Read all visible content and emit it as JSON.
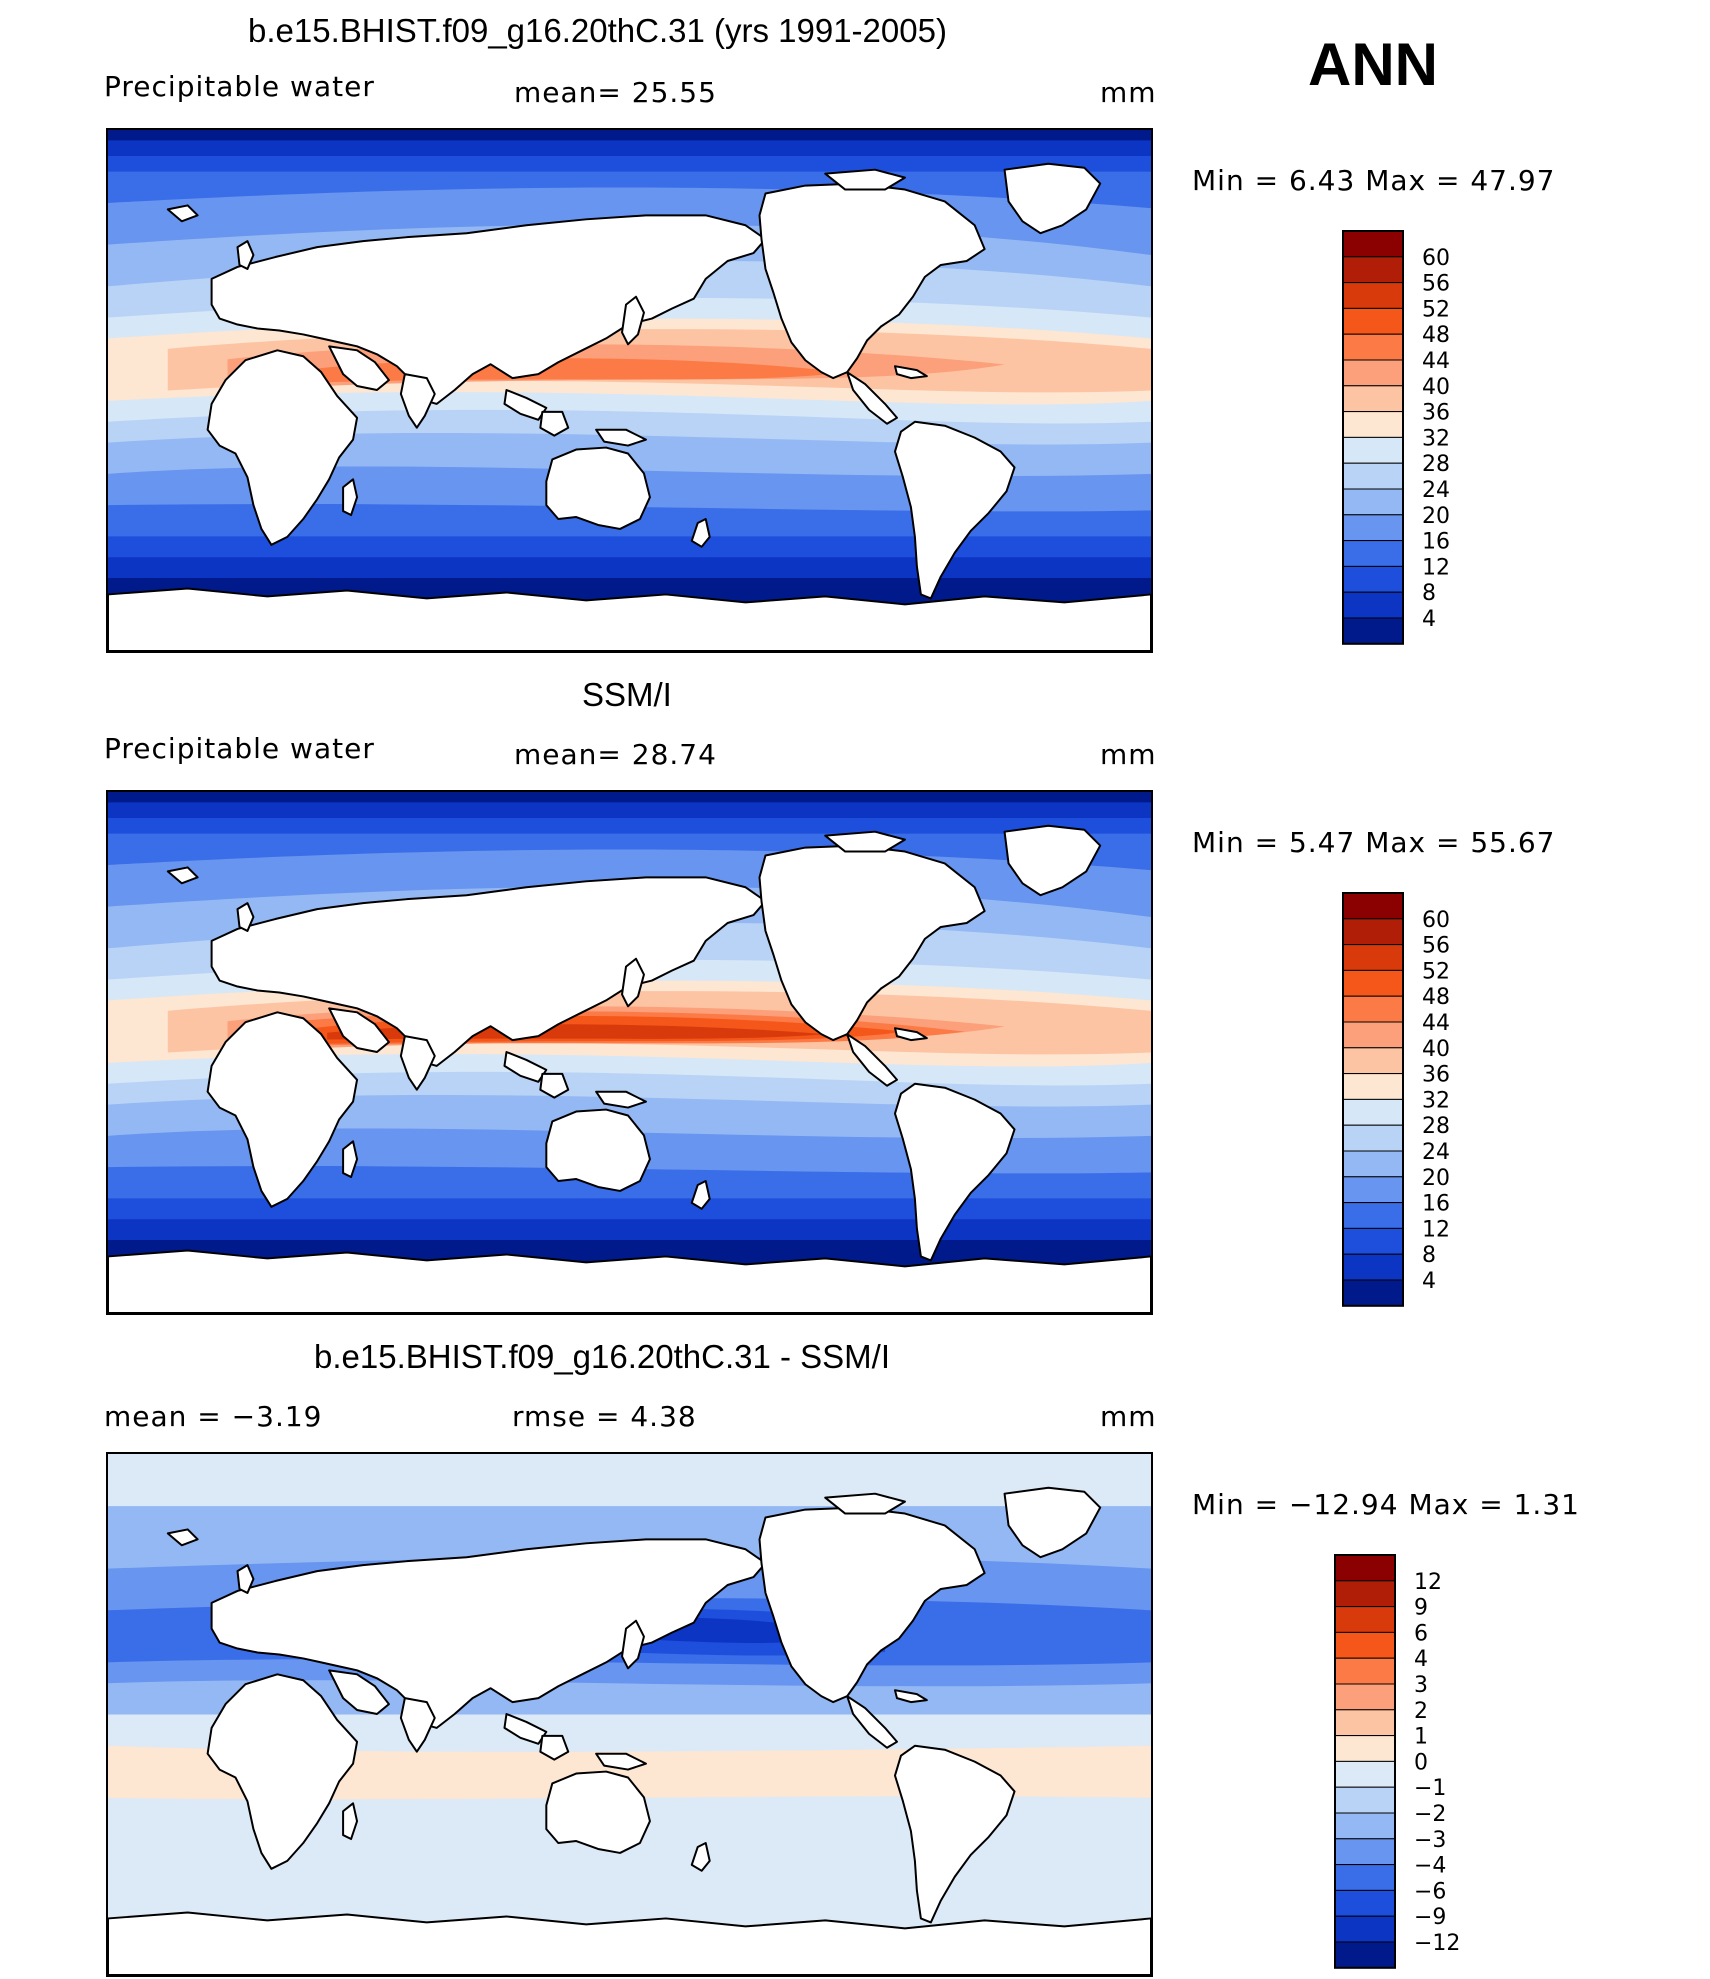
{
  "season": "ANN",
  "panels": [
    {
      "id": "model",
      "title": "b.e15.BHIST.f09_g16.20thC.31 (yrs 1991-2005)",
      "left_label": "Precipitable  water",
      "center_label": "mean=   25.55",
      "units": "mm",
      "minmax": "Min  =     6.43  Max  =    47.97",
      "palette": "abs",
      "levels": [
        "60",
        "56",
        "52",
        "48",
        "44",
        "40",
        "36",
        "32",
        "28",
        "24",
        "20",
        "16",
        "12",
        "8",
        "4"
      ]
    },
    {
      "id": "obs",
      "title": "SSM/I",
      "left_label": "Precipitable  water",
      "center_label": "mean=   28.74",
      "units": "mm",
      "minmax": "Min  =     5.47  Max  =    55.67",
      "palette": "abs",
      "levels": [
        "60",
        "56",
        "52",
        "48",
        "44",
        "40",
        "36",
        "32",
        "28",
        "24",
        "20",
        "16",
        "12",
        "8",
        "4"
      ]
    },
    {
      "id": "diff",
      "title": "b.e15.BHIST.f09_g16.20thC.31 - SSM/I",
      "left_label": "mean  =    −3.19",
      "center_label": "rmse  =     4.38",
      "units": "mm",
      "minmax": "Min  = −12.94  Max  =      1.31",
      "palette": "diff",
      "levels": [
        "12",
        "9",
        "6",
        "4",
        "3",
        "2",
        "1",
        "0",
        "−1",
        "−2",
        "−3",
        "−4",
        "−6",
        "−9",
        "−12"
      ]
    }
  ],
  "colors": {
    "abs": [
      "#8b0000",
      "#b01e08",
      "#d93a0b",
      "#f5561a",
      "#fc7a45",
      "#fca07b",
      "#fdc4a3",
      "#fde6d2",
      "#d6e7f7",
      "#b8d3f5",
      "#93b8f3",
      "#6795ef",
      "#3a6de8",
      "#1e4fdc",
      "#0d35c4",
      "#001a8c"
    ],
    "diff": [
      "#8b0000",
      "#b01e08",
      "#d93a0b",
      "#f5561a",
      "#fc7a45",
      "#fca07b",
      "#fdc4a3",
      "#fde6d2",
      "#dce9f7",
      "#b8d3f5",
      "#93b8f3",
      "#6795ef",
      "#3a6de8",
      "#1e4fdc",
      "#0d35c4",
      "#001a8c"
    ],
    "land": "#ffffff",
    "coast": "#000000"
  }
}
